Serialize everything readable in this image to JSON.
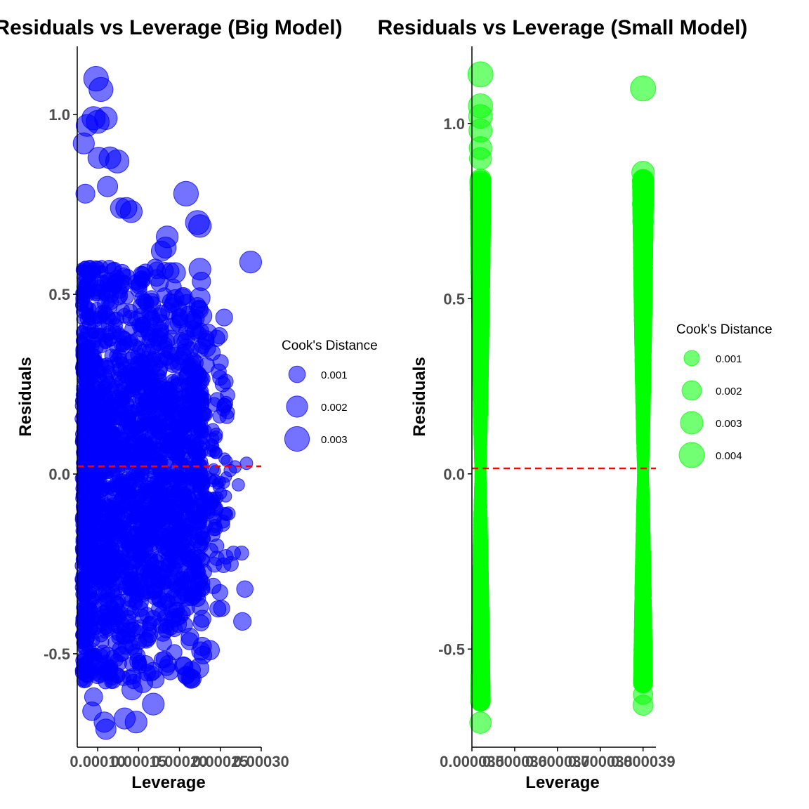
{
  "charts": {
    "big": {
      "title": "Residuals vs Leverage (Big Model)",
      "xlabel": "Leverage",
      "ylabel": "Residuals",
      "x_ticks": [
        "0.00010",
        "0.00015",
        "0.00020",
        "0.00025",
        "0.00030"
      ],
      "y_ticks": [
        "-0.5",
        "0.0",
        "0.5",
        "1.0"
      ],
      "legend_title": "Cook's Distance",
      "legend_labels": [
        "0.001",
        "0.002",
        "0.003"
      ]
    },
    "small": {
      "title": "Residuals vs Leverage (Small Model)",
      "xlabel": "Leverage",
      "ylabel": "Residuals",
      "x_ticks": [
        "0.000035",
        "0.000036",
        "0.000037",
        "0.000038",
        "0.000039"
      ],
      "y_ticks": [
        "-0.5",
        "0.0",
        "0.5",
        "1.0"
      ],
      "legend_title": "Cook's Distance",
      "legend_labels": [
        "0.001",
        "0.002",
        "0.003",
        "0.004"
      ]
    }
  },
  "chart_data": [
    {
      "type": "scatter",
      "title": "Residuals vs Leverage (Big Model)",
      "xlabel": "Leverage",
      "ylabel": "Residuals",
      "xlim": [
        7.5e-05,
        0.0003
      ],
      "ylim": [
        -0.76,
        1.19
      ],
      "x_ticks": [
        0.0001,
        0.00015,
        0.0002,
        0.00025,
        0.0003
      ],
      "y_ticks": [
        -0.5,
        0.0,
        0.5,
        1.0
      ],
      "point_color": "#0000ff",
      "point_opacity": 0.55,
      "size_variable": "Cook's Distance",
      "size_legend": [
        0.001,
        0.002,
        0.003
      ],
      "reference_line": {
        "y": 0,
        "color": "#ff0000",
        "style": "dashed"
      },
      "legend_position": "right",
      "grid": false,
      "outlying_points": [
        {
          "x": 9.8e-05,
          "y": 1.1,
          "cooks": 0.003
        },
        {
          "x": 0.000104,
          "y": 1.07,
          "cooks": 0.0028
        },
        {
          "x": 9.5e-05,
          "y": 0.99,
          "cooks": 0.0026
        },
        {
          "x": 8.7e-05,
          "y": 0.97,
          "cooks": 0.0022
        },
        {
          "x": 0.0001,
          "y": 0.98,
          "cooks": 0.0025
        },
        {
          "x": 8.3e-05,
          "y": 0.92,
          "cooks": 0.002
        },
        {
          "x": 0.00011,
          "y": 0.99,
          "cooks": 0.0024
        },
        {
          "x": 0.000101,
          "y": 0.88,
          "cooks": 0.002
        },
        {
          "x": 0.000115,
          "y": 0.88,
          "cooks": 0.0022
        },
        {
          "x": 0.000124,
          "y": 0.87,
          "cooks": 0.0026
        },
        {
          "x": 0.000112,
          "y": 0.8,
          "cooks": 0.0018
        },
        {
          "x": 8.5e-05,
          "y": 0.78,
          "cooks": 0.0015
        },
        {
          "x": 0.000128,
          "y": 0.74,
          "cooks": 0.0018
        },
        {
          "x": 0.000135,
          "y": 0.74,
          "cooks": 0.002
        },
        {
          "x": 0.000141,
          "y": 0.73,
          "cooks": 0.0022
        },
        {
          "x": 0.000208,
          "y": 0.78,
          "cooks": 0.003
        },
        {
          "x": 0.000185,
          "y": 0.66,
          "cooks": 0.0022
        },
        {
          "x": 0.000195,
          "y": 0.56,
          "cooks": 0.0018
        },
        {
          "x": 0.000222,
          "y": 0.7,
          "cooks": 0.0028
        },
        {
          "x": 0.000225,
          "y": 0.69,
          "cooks": 0.0024
        },
        {
          "x": 0.000183,
          "y": 0.63,
          "cooks": 0.002
        },
        {
          "x": 0.000178,
          "y": 0.62,
          "cooks": 0.0018
        },
        {
          "x": 0.000225,
          "y": 0.57,
          "cooks": 0.0022
        },
        {
          "x": 0.000225,
          "y": 0.49,
          "cooks": 0.0018
        },
        {
          "x": 0.000228,
          "y": 0.44,
          "cooks": 0.0015
        },
        {
          "x": 0.000287,
          "y": 0.59,
          "cooks": 0.0022
        },
        {
          "x": 0.000234,
          "y": 0.35,
          "cooks": 0.001
        },
        {
          "x": 0.000253,
          "y": 0.25,
          "cooks": 0.0008
        },
        {
          "x": 0.000255,
          "y": 0.19,
          "cooks": 0.0007
        },
        {
          "x": 0.000258,
          "y": 0.16,
          "cooks": 0.0006
        },
        {
          "x": 0.000282,
          "y": 0.03,
          "cooks": 0.0004
        },
        {
          "x": 0.000268,
          "y": 0.02,
          "cooks": 0.0004
        },
        {
          "x": 0.000262,
          "y": 0.01,
          "cooks": 0.0004
        },
        {
          "x": 0.000272,
          "y": -0.03,
          "cooks": 0.0004
        },
        {
          "x": 0.00026,
          "y": -0.11,
          "cooks": 0.0005
        },
        {
          "x": 0.000266,
          "y": -0.22,
          "cooks": 0.0006
        },
        {
          "x": 0.000276,
          "y": -0.22,
          "cooks": 0.0006
        },
        {
          "x": 0.000263,
          "y": -0.25,
          "cooks": 0.0007
        },
        {
          "x": 0.00028,
          "y": -0.32,
          "cooks": 0.001
        },
        {
          "x": 0.000277,
          "y": -0.41,
          "cooks": 0.0012
        },
        {
          "x": 0.000237,
          "y": -0.49,
          "cooks": 0.0016
        },
        {
          "x": 0.000224,
          "y": -0.54,
          "cooks": 0.0016
        },
        {
          "x": 0.000168,
          "y": -0.64,
          "cooks": 0.0022
        },
        {
          "x": 0.000155,
          "y": -0.58,
          "cooks": 0.0018
        },
        {
          "x": 0.000142,
          "y": -0.6,
          "cooks": 0.0018
        },
        {
          "x": 0.000133,
          "y": -0.68,
          "cooks": 0.002
        },
        {
          "x": 0.000147,
          "y": -0.69,
          "cooks": 0.0022
        },
        {
          "x": 0.000108,
          "y": -0.69,
          "cooks": 0.0018
        },
        {
          "x": 0.00011,
          "y": -0.71,
          "cooks": 0.0018
        },
        {
          "x": 9.3e-05,
          "y": -0.66,
          "cooks": 0.0014
        },
        {
          "x": 9.5e-05,
          "y": -0.62,
          "cooks": 0.0013
        }
      ],
      "bulk_density": "dense cloud of several thousand points spanning leverage 0.00008-0.00025 and residuals -0.6 to 0.6"
    },
    {
      "type": "scatter",
      "title": "Residuals vs Leverage (Small Model)",
      "xlabel": "Leverage",
      "ylabel": "Residuals",
      "xlim": [
        3.5e-05,
        3.93e-05
      ],
      "ylim": [
        -0.78,
        1.22
      ],
      "x_ticks": [
        3.5e-05,
        3.6e-05,
        3.7e-05,
        3.8e-05,
        3.9e-05
      ],
      "y_ticks": [
        -0.5,
        0.0,
        0.5,
        1.0
      ],
      "point_color": "#00ff00",
      "point_opacity": 0.55,
      "size_variable": "Cook's Distance",
      "size_legend": [
        0.001,
        0.002,
        0.003,
        0.004
      ],
      "reference_line": {
        "y": 0,
        "color": "#ff0000",
        "style": "dashed"
      },
      "legend_position": "right",
      "grid": false,
      "columns": [
        {
          "x": 3.52e-05,
          "y_min": -0.71,
          "y_max": 1.14
        },
        {
          "x": 3.9e-05,
          "y_min": -0.66,
          "y_max": 1.1
        }
      ],
      "outlying_points": [
        {
          "x": 3.52e-05,
          "y": 1.14,
          "cooks": 0.004
        },
        {
          "x": 3.52e-05,
          "y": 1.05,
          "cooks": 0.0036
        },
        {
          "x": 3.52e-05,
          "y": 1.02,
          "cooks": 0.0034
        },
        {
          "x": 3.52e-05,
          "y": 0.98,
          "cooks": 0.0032
        },
        {
          "x": 3.52e-05,
          "y": 0.93,
          "cooks": 0.003
        },
        {
          "x": 3.52e-05,
          "y": 0.9,
          "cooks": 0.0028
        },
        {
          "x": 3.52e-05,
          "y": 0.82,
          "cooks": 0.0024
        },
        {
          "x": 3.52e-05,
          "y": -0.64,
          "cooks": 0.002
        },
        {
          "x": 3.52e-05,
          "y": -0.71,
          "cooks": 0.0026
        },
        {
          "x": 3.9e-05,
          "y": 1.1,
          "cooks": 0.004
        },
        {
          "x": 3.9e-05,
          "y": 0.86,
          "cooks": 0.003
        },
        {
          "x": 3.9e-05,
          "y": 0.77,
          "cooks": 0.0026
        },
        {
          "x": 3.9e-05,
          "y": 0.72,
          "cooks": 0.0024
        },
        {
          "x": 3.9e-05,
          "y": -0.57,
          "cooks": 0.0018
        },
        {
          "x": 3.9e-05,
          "y": -0.63,
          "cooks": 0.002
        },
        {
          "x": 3.9e-05,
          "y": -0.66,
          "cooks": 0.0022
        }
      ]
    }
  ]
}
